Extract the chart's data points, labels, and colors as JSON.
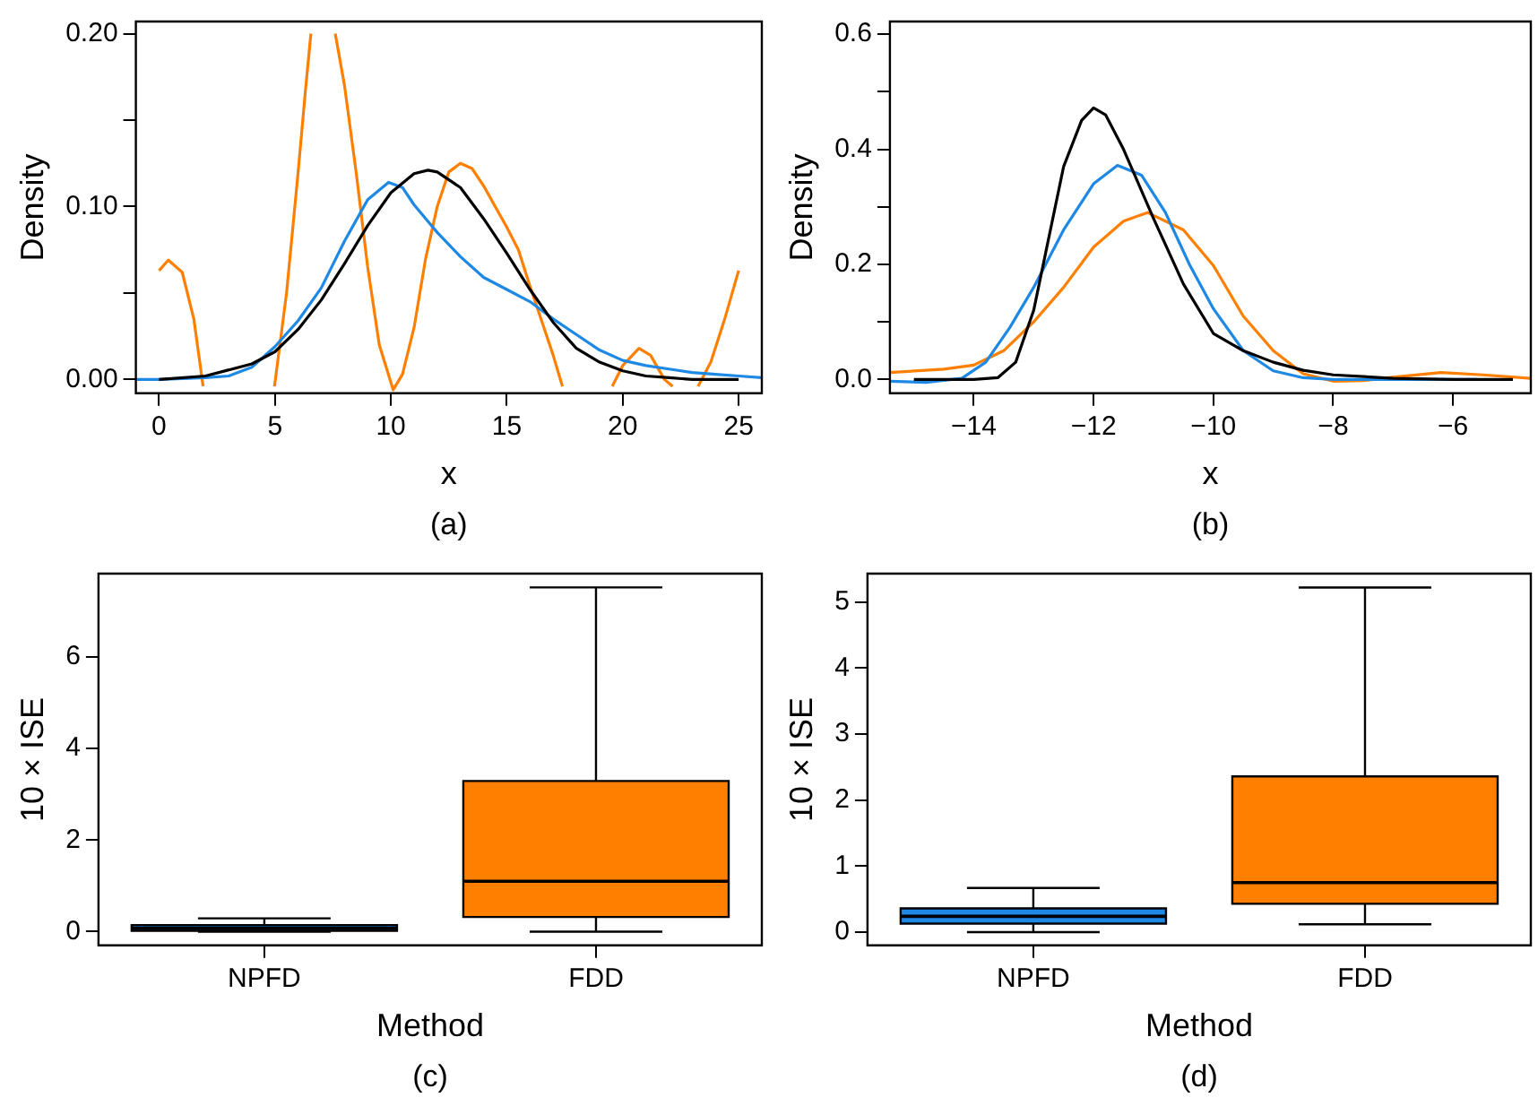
{
  "chart_data": [
    {
      "type": "line",
      "xlabel": "x",
      "ylabel": "Density",
      "annotations": [
        "(a)"
      ],
      "xlim": [
        -1,
        26
      ],
      "ylim": [
        -0.008,
        0.207
      ],
      "xticks": [
        0,
        5,
        10,
        15,
        20,
        25
      ],
      "yticks": [
        {
          "value": 0,
          "label": "0.00"
        },
        {
          "value": 0.05,
          "label": null
        },
        {
          "value": 0.1,
          "label": "0.10"
        },
        {
          "value": 0.15,
          "label": null
        },
        {
          "value": 0.2,
          "label": "0.20"
        }
      ],
      "marker": "none",
      "line_style": "solid",
      "series": [
        {
          "color": "#000000",
          "x": [
            0,
            2,
            4,
            5,
            6,
            7,
            8,
            9,
            10,
            11,
            11.6,
            12,
            13,
            14,
            15,
            16,
            17,
            18,
            19,
            20,
            21,
            22,
            23,
            25
          ],
          "values": [
            0,
            0.002,
            0.009,
            0.016,
            0.029,
            0.046,
            0.067,
            0.089,
            0.108,
            0.119,
            0.121,
            0.12,
            0.111,
            0.093,
            0.073,
            0.052,
            0.033,
            0.018,
            0.01,
            0.005,
            0.002,
            0.001,
            0,
            0
          ]
        },
        {
          "color": "#1e88e5",
          "x": [
            -1,
            0,
            2,
            3,
            4,
            5,
            6,
            7,
            8,
            9,
            9.9,
            10.5,
            11,
            12,
            13,
            14,
            15,
            16,
            17,
            18,
            19,
            20,
            21,
            22,
            23,
            24,
            25,
            26
          ],
          "values": [
            0,
            0,
            0.001,
            0.002,
            0.007,
            0.019,
            0.034,
            0.053,
            0.08,
            0.104,
            0.114,
            0.111,
            0.101,
            0.085,
            0.071,
            0.059,
            0.052,
            0.045,
            0.035,
            0.026,
            0.017,
            0.011,
            0.008,
            0.006,
            0.004,
            0.003,
            0.002,
            0.001
          ]
        },
        {
          "color": "#ff7f00",
          "x": [
            0,
            0.4,
            1,
            1.5,
            1.9,
            3.5,
            4.98,
            5.5,
            6,
            6.3,
            6.55,
            7,
            7.6,
            8,
            8.5,
            9,
            9.5,
            10.1,
            10.5,
            11,
            11.5,
            12,
            12.5,
            13,
            13.5,
            14,
            14.5,
            15,
            15.5,
            16,
            16.5,
            17,
            17.4,
            18.5,
            19.55,
            20,
            20.7,
            21.2,
            21.8,
            22.15,
            22.7,
            23.25,
            23.8,
            24.4,
            25
          ],
          "values": [
            0.063,
            0.069,
            0.062,
            0.035,
            -0.004,
            null,
            -0.004,
            0.05,
            0.12,
            0.165,
            0.2,
            null,
            0.2,
            0.17,
            0.12,
            0.065,
            0.02,
            -0.006,
            0.003,
            0.03,
            0.07,
            0.1,
            0.12,
            0.125,
            0.122,
            0.112,
            0.1,
            0.088,
            0.075,
            0.054,
            0.034,
            0.014,
            -0.004,
            null,
            -0.004,
            0.008,
            0.018,
            0.014,
            0,
            -0.004,
            null,
            -0.004,
            0.01,
            0.035,
            0.063
          ]
        }
      ]
    },
    {
      "type": "line",
      "xlabel": "x",
      "ylabel": "Density",
      "annotations": [
        "(b)"
      ],
      "xlim": [
        -15.4,
        -4.7
      ],
      "ylim": [
        -0.024,
        0.622
      ],
      "xticks": [
        {
          "value": -14,
          "label": "−14"
        },
        {
          "value": -12,
          "label": "−12"
        },
        {
          "value": -10,
          "label": "−10"
        },
        {
          "value": -8,
          "label": "−8"
        },
        {
          "value": -6,
          "label": "−6"
        }
      ],
      "yticks": [
        {
          "value": 0,
          "label": "0.0"
        },
        {
          "value": 0.1,
          "label": null
        },
        {
          "value": 0.2,
          "label": "0.2"
        },
        {
          "value": 0.3,
          "label": null
        },
        {
          "value": 0.4,
          "label": "0.4"
        },
        {
          "value": 0.5,
          "label": null
        },
        {
          "value": 0.6,
          "label": "0.6"
        }
      ],
      "marker": "none",
      "line_style": "solid",
      "series": [
        {
          "color": "#000000",
          "x": [
            -15,
            -14,
            -13.6,
            -13.3,
            -13,
            -12.8,
            -12.5,
            -12.2,
            -12,
            -11.8,
            -11.5,
            -11,
            -10.5,
            -10,
            -9.5,
            -9,
            -8.5,
            -8,
            -7,
            -6,
            -5
          ],
          "values": [
            0,
            0,
            0.003,
            0.03,
            0.12,
            0.22,
            0.37,
            0.45,
            0.472,
            0.46,
            0.4,
            0.28,
            0.166,
            0.08,
            0.05,
            0.03,
            0.016,
            0.008,
            0.002,
            0,
            0
          ]
        },
        {
          "color": "#1e88e5",
          "x": [
            -15.4,
            -14.8,
            -14.2,
            -13.8,
            -13.4,
            -13,
            -12.5,
            -12,
            -11.6,
            -11.2,
            -10.8,
            -10.4,
            -10,
            -9.5,
            -9,
            -8.5,
            -8,
            -7,
            -6,
            -5.6
          ],
          "values": [
            -0.003,
            -0.005,
            0.002,
            0.03,
            0.09,
            0.16,
            0.26,
            0.34,
            0.372,
            0.355,
            0.29,
            0.2,
            0.123,
            0.05,
            0.015,
            0.003,
            0,
            0,
            0,
            0
          ]
        },
        {
          "color": "#ff7f00",
          "x": [
            -15.4,
            -14.5,
            -14,
            -13.5,
            -13,
            -12.5,
            -12,
            -11.5,
            -11.1,
            -10.5,
            -10,
            -9.5,
            -9,
            -8.5,
            -8,
            -7.5,
            -7,
            -6.2,
            -5.5,
            -4.7
          ],
          "values": [
            0.012,
            0.018,
            0.025,
            0.05,
            0.1,
            0.16,
            0.23,
            0.275,
            0.29,
            0.26,
            0.198,
            0.11,
            0.05,
            0.01,
            -0.003,
            -0.002,
            0.004,
            0.012,
            0.008,
            0.002
          ]
        }
      ]
    },
    {
      "type": "box",
      "xlabel": "Method",
      "ylabel": "10 × ISE",
      "annotations": [
        "(c)"
      ],
      "categories": [
        "NPFD",
        "FDD"
      ],
      "ylim": [
        -0.3,
        7.82
      ],
      "yticks": [
        0,
        2,
        4,
        6
      ],
      "colors": [
        "#1e88e5",
        "#ff7f00"
      ],
      "boxes": [
        {
          "low": 0,
          "q1": 0.02,
          "median": 0.07,
          "q3": 0.14,
          "high": 0.29
        },
        {
          "low": 0,
          "q1": 0.32,
          "median": 1.1,
          "q3": 3.29,
          "high": 7.52
        }
      ]
    },
    {
      "type": "box",
      "xlabel": "Method",
      "ylabel": "10 × ISE",
      "annotations": [
        "(d)"
      ],
      "categories": [
        "NPFD",
        "FDD"
      ],
      "ylim": [
        -0.2,
        5.43
      ],
      "yticks": [
        0,
        1,
        2,
        3,
        4,
        5
      ],
      "colors": [
        "#1e88e5",
        "#ff7f00"
      ],
      "boxes": [
        {
          "low": 0,
          "q1": 0.13,
          "median": 0.24,
          "q3": 0.36,
          "high": 0.67
        },
        {
          "low": 0.12,
          "q1": 0.43,
          "median": 0.75,
          "q3": 2.36,
          "high": 5.22
        }
      ]
    }
  ]
}
